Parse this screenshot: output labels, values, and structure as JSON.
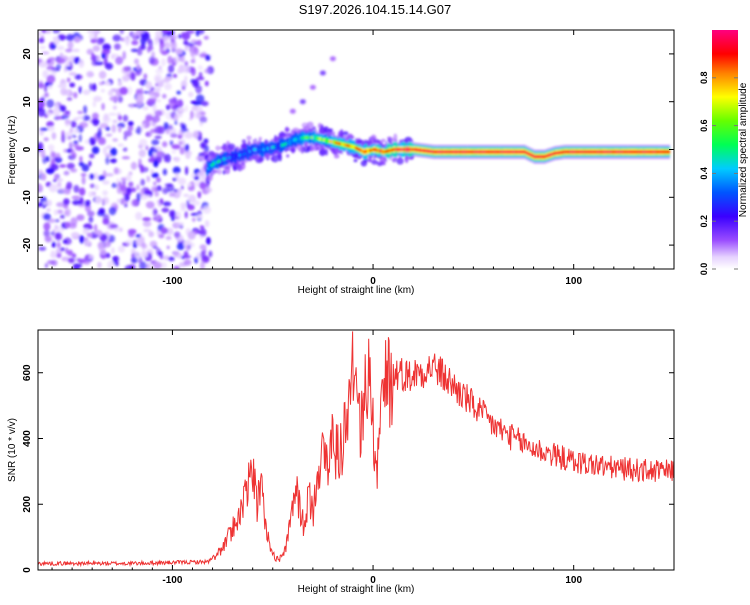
{
  "title": "S197.2026.104.15.14.G07",
  "chart_data": [
    {
      "type": "heatmap",
      "name": "spectrogram",
      "xlabel": "Height of straight line (km)",
      "ylabel": "Frequency (Hz)",
      "xlim": [
        -167,
        150
      ],
      "ylim": [
        -25,
        25
      ],
      "x_ticks": [
        -100,
        0,
        100
      ],
      "y_ticks": [
        -20,
        -10,
        0,
        10,
        20
      ],
      "colorbar": {
        "label": "Normalized spectral amplitude",
        "ticks": [
          0.0,
          0.2,
          0.4,
          0.6,
          0.8
        ],
        "range": [
          0,
          1
        ]
      },
      "noise_region_x": [
        -167,
        -83
      ],
      "ridge": {
        "x": [
          -83,
          -80,
          -75,
          -70,
          -65,
          -60,
          -55,
          -50,
          -45,
          -40,
          -35,
          -30,
          -25,
          -20,
          -15,
          -10,
          -5,
          0,
          5,
          10,
          20,
          30,
          40,
          50,
          60,
          70,
          75,
          80,
          85,
          90,
          95,
          100,
          110,
          120,
          130,
          140,
          148
        ],
        "freq": [
          -4,
          -3,
          -2,
          -1.5,
          -1,
          0,
          0,
          0.5,
          1,
          2,
          2.5,
          2.5,
          2,
          1.5,
          1,
          0.5,
          -0.5,
          0,
          -0.5,
          0,
          0,
          -0.5,
          -0.5,
          -0.5,
          -0.5,
          -0.5,
          -0.5,
          -1.5,
          -1.5,
          -0.8,
          -0.5,
          -0.5,
          -0.5,
          -0.5,
          -0.5,
          -0.5,
          -0.5
        ],
        "amplitude": [
          0.4,
          0.45,
          0.35,
          0.3,
          0.3,
          0.35,
          0.35,
          0.35,
          0.4,
          0.45,
          0.5,
          0.55,
          0.6,
          0.7,
          0.75,
          0.8,
          0.85,
          0.85,
          0.9,
          0.9,
          0.95,
          0.95,
          0.95,
          0.95,
          0.95,
          0.95,
          0.95,
          0.95,
          0.95,
          0.95,
          0.95,
          0.95,
          0.95,
          0.95,
          0.95,
          0.95,
          0.9
        ]
      },
      "streak": {
        "x": [
          -40,
          -35,
          -30,
          -25,
          -20
        ],
        "freq": [
          8,
          10,
          13,
          16,
          19
        ]
      }
    },
    {
      "type": "line",
      "name": "snr",
      "xlabel": "Height of straight line (km)",
      "ylabel": "SNR (10 * v/v)",
      "xlim": [
        -167,
        150
      ],
      "ylim": [
        0,
        730
      ],
      "x_ticks": [
        -100,
        0,
        100
      ],
      "y_ticks": [
        0,
        200,
        400,
        600
      ],
      "color": "#ee3333",
      "envelope_x": [
        -167,
        -120,
        -82,
        -78,
        -74,
        -70,
        -66,
        -62,
        -60,
        -58,
        -56,
        -54,
        -52,
        -50,
        -47,
        -44,
        -42,
        -40,
        -38,
        -36,
        -34,
        -32,
        -30,
        -28,
        -26,
        -24,
        -22,
        -20,
        -18,
        -16,
        -14,
        -12,
        -10,
        -8,
        -6,
        -4,
        -2,
        0,
        2,
        4,
        6,
        8,
        10,
        14,
        18,
        22,
        26,
        30,
        35,
        40,
        45,
        50,
        55,
        60,
        70,
        80,
        90,
        100,
        110,
        120,
        130,
        140,
        150
      ],
      "envelope_y": [
        20,
        20,
        25,
        45,
        75,
        130,
        175,
        260,
        320,
        190,
        270,
        150,
        90,
        45,
        30,
        60,
        110,
        200,
        250,
        160,
        130,
        230,
        170,
        310,
        330,
        350,
        300,
        420,
        350,
        370,
        440,
        480,
        510,
        520,
        430,
        460,
        700,
        420,
        330,
        500,
        560,
        540,
        600,
        600,
        590,
        600,
        610,
        620,
        590,
        560,
        530,
        500,
        470,
        440,
        400,
        370,
        350,
        330,
        320,
        310,
        305,
        300,
        300
      ]
    }
  ]
}
